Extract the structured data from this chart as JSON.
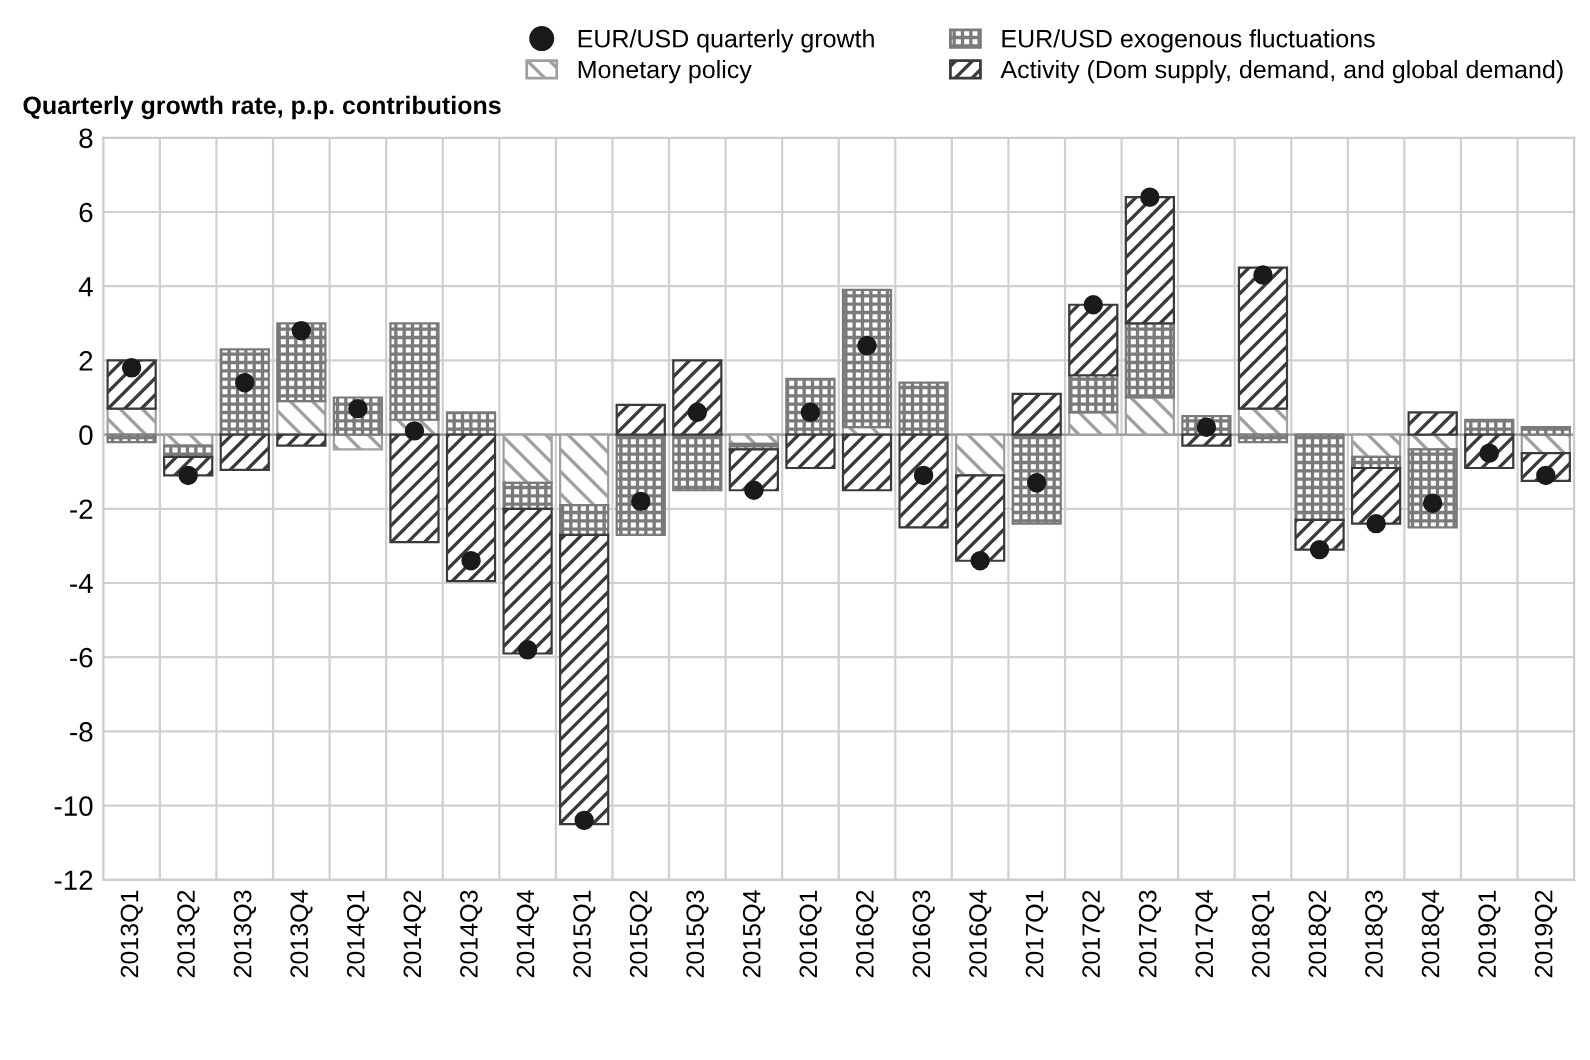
{
  "chart_data": {
    "type": "bar",
    "stacked": true,
    "ylabel": "Quarterly growth rate, p.p. contributions",
    "categories": [
      "2013Q1",
      "2013Q2",
      "2013Q3",
      "2013Q4",
      "2014Q1",
      "2014Q2",
      "2014Q3",
      "2014Q4",
      "2015Q1",
      "2015Q2",
      "2015Q3",
      "2015Q4",
      "2016Q1",
      "2016Q2",
      "2016Q3",
      "2016Q4",
      "2017Q1",
      "2017Q2",
      "2017Q3",
      "2017Q4",
      "2018Q1",
      "2018Q2",
      "2018Q3",
      "2018Q4",
      "2019Q1",
      "2019Q2"
    ],
    "series": [
      {
        "name": "EUR/USD quarterly growth",
        "type": "scatter",
        "color": "#1a1a1a",
        "values": [
          1.8,
          -1.1,
          1.4,
          2.8,
          0.7,
          0.1,
          -3.4,
          -5.8,
          -10.4,
          -1.8,
          0.6,
          -1.5,
          0.6,
          2.4,
          -1.1,
          -3.4,
          -1.3,
          3.5,
          6.4,
          0.2,
          4.3,
          -3.1,
          -2.4,
          -1.85,
          -0.5,
          -1.1
        ]
      },
      {
        "name": "Monetary policy",
        "color": "#a0a0a0",
        "values": [
          0.7,
          -0.3,
          null,
          0.9,
          -0.4,
          0.4,
          null,
          -1.3,
          -1.9,
          null,
          null,
          -0.25,
          null,
          0.2,
          null,
          -1.1,
          null,
          0.6,
          1.0,
          null,
          0.7,
          null,
          -0.6,
          -0.4,
          null,
          -0.5
        ]
      },
      {
        "name": "EUR/USD exogenous fluctuations",
        "color": "#7a7a7a",
        "values": [
          -0.2,
          -0.3,
          2.3,
          2.1,
          1.0,
          2.6,
          0.6,
          -0.7,
          -0.8,
          -2.7,
          -1.5,
          -0.15,
          1.5,
          3.7,
          1.4,
          null,
          -2.4,
          1.0,
          2.0,
          0.5,
          -0.2,
          -2.3,
          -0.3,
          -2.1,
          0.4,
          0.2
        ]
      },
      {
        "name": "Activity (Dom supply, demand, and global demand)",
        "color": "#3a3a3a",
        "values": [
          1.3,
          -0.5,
          -0.95,
          -0.3,
          null,
          -2.9,
          -3.95,
          -3.9,
          -7.8,
          0.8,
          2.0,
          -1.1,
          -0.9,
          -1.5,
          -2.5,
          -2.3,
          1.1,
          1.9,
          3.4,
          -0.3,
          3.8,
          -0.8,
          -1.5,
          0.6,
          -0.9,
          -0.75
        ]
      }
    ],
    "ylim": [
      -12,
      8
    ],
    "yticks": [
      -12,
      -10,
      -8,
      -6,
      -4,
      -2,
      0,
      2,
      4,
      6,
      8
    ],
    "grid": true,
    "legend": "top"
  }
}
